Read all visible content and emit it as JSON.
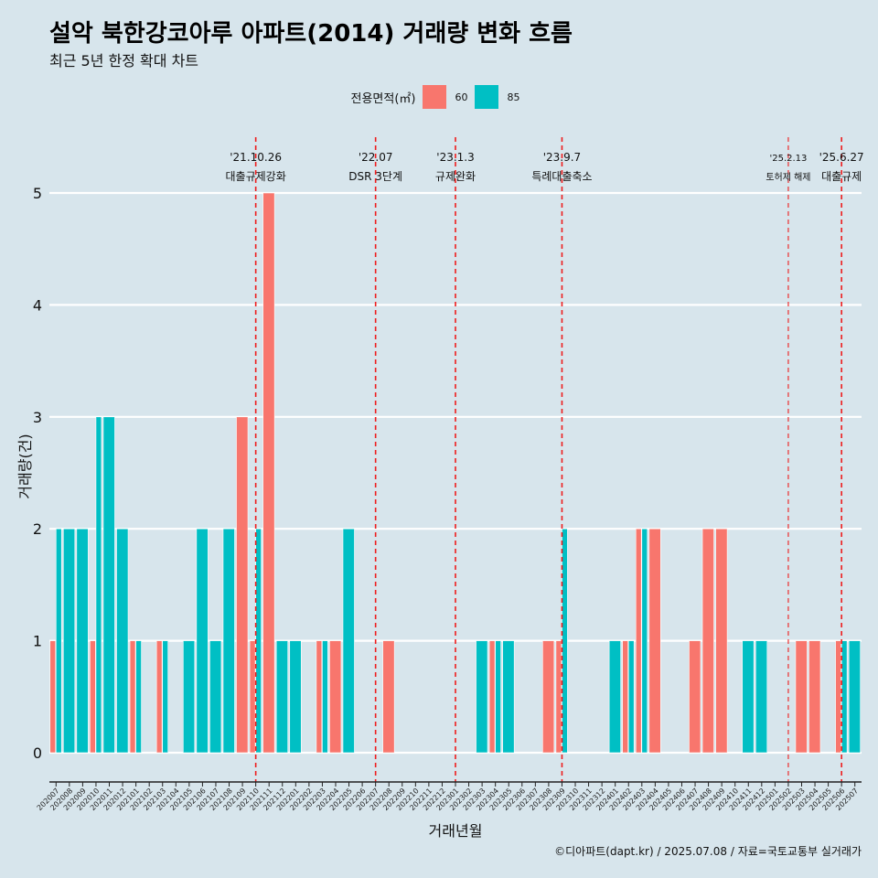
{
  "title": "설악 북한강코아루 아파트(2014) 거래량 변화 흐름",
  "subtitle": "최근 5년 한정 확대 차트",
  "legend": {
    "title": "전용면적(㎡)",
    "items": [
      {
        "label": "60",
        "color": "#F8766D"
      },
      {
        "label": "85",
        "color": "#00BFC4"
      }
    ]
  },
  "credit": "©디아파트(dapt.kr) / 2025.07.08 / 자료=국토교통부 실거래가",
  "chart_data": {
    "type": "bar",
    "title": "설악 북한강코아루 아파트(2014) 거래량 변화 흐름",
    "xlabel": "거래년월",
    "ylabel": "거래량(건)",
    "ylim": [
      0,
      5
    ],
    "yticks": [
      0,
      1,
      2,
      3,
      4,
      5
    ],
    "categories": [
      "202007",
      "202008",
      "202009",
      "202010",
      "202011",
      "202012",
      "202101",
      "202102",
      "202103",
      "202104",
      "202105",
      "202106",
      "202107",
      "202108",
      "202109",
      "202110",
      "202111",
      "202112",
      "202201",
      "202202",
      "202203",
      "202204",
      "202205",
      "202206",
      "202207",
      "202208",
      "202209",
      "202210",
      "202211",
      "202212",
      "202301",
      "202302",
      "202303",
      "202304",
      "202305",
      "202306",
      "202307",
      "202308",
      "202309",
      "202310",
      "202311",
      "202312",
      "202401",
      "202402",
      "202403",
      "202404",
      "202405",
      "202406",
      "202407",
      "202408",
      "202409",
      "202410",
      "202411",
      "202412",
      "202501",
      "202502",
      "202503",
      "202504",
      "202505",
      "202506",
      "202507"
    ],
    "series": [
      {
        "name": "60",
        "color": "#F8766D",
        "values": [
          1,
          0,
          0,
          1,
          0,
          0,
          1,
          0,
          1,
          0,
          0,
          0,
          0,
          0,
          3,
          1,
          5,
          0,
          0,
          0,
          1,
          1,
          0,
          0,
          0,
          1,
          0,
          0,
          0,
          0,
          0,
          0,
          0,
          1,
          0,
          0,
          0,
          1,
          1,
          0,
          0,
          0,
          0,
          1,
          2,
          2,
          0,
          0,
          1,
          2,
          2,
          0,
          0,
          0,
          0,
          0,
          1,
          1,
          0,
          1,
          0
        ]
      },
      {
        "name": "85",
        "color": "#00BFC4",
        "values": [
          2,
          2,
          2,
          3,
          3,
          2,
          1,
          0,
          1,
          0,
          1,
          2,
          1,
          2,
          0,
          2,
          0,
          1,
          1,
          0,
          1,
          0,
          2,
          0,
          0,
          0,
          0,
          0,
          0,
          0,
          0,
          0,
          1,
          1,
          1,
          0,
          0,
          0,
          2,
          0,
          0,
          0,
          1,
          1,
          2,
          0,
          0,
          0,
          0,
          0,
          0,
          0,
          1,
          1,
          0,
          0,
          0,
          0,
          0,
          1,
          1
        ]
      }
    ],
    "annotations": [
      {
        "date": "'21.10.26",
        "text": "대출규제강화",
        "x": "202110"
      },
      {
        "date": "'22.07",
        "text": "DSR 3단계",
        "x": "202207"
      },
      {
        "date": "'23.1.3",
        "text": "규제완화",
        "x": "202301"
      },
      {
        "date": "'23.9.7",
        "text": "특례대출축소",
        "x": "202309"
      },
      {
        "date": "'25.2.13",
        "text": "토허제 해제",
        "x": "202502",
        "small": true
      },
      {
        "date": "'25.6.27",
        "text": "대출규제",
        "x": "202506"
      }
    ]
  }
}
